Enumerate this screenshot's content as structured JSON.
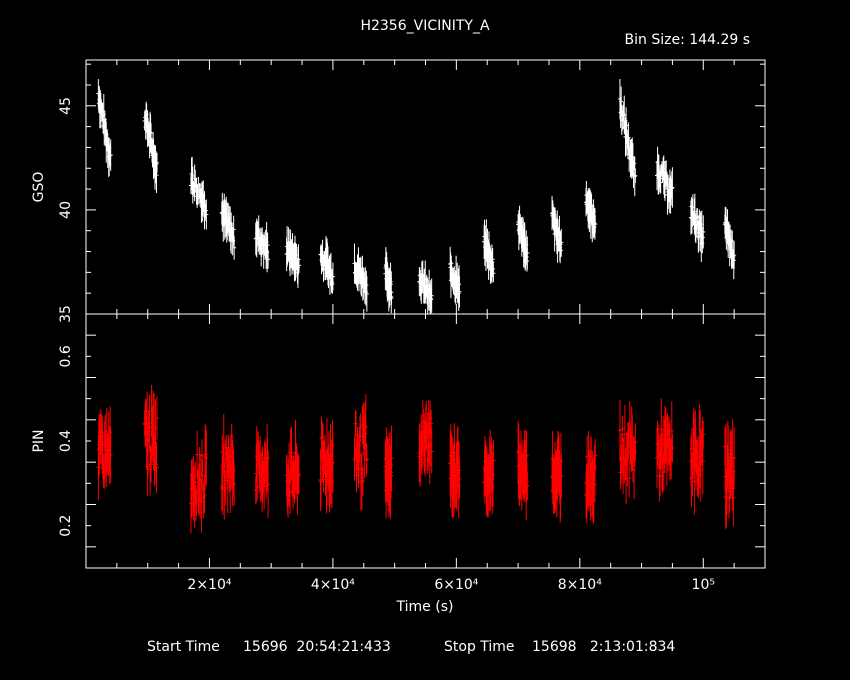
{
  "chart_data": [
    {
      "type": "scatter",
      "title": "H2356_VICINITY_A",
      "subtitle": "Bin Size: 144.29 s",
      "xlabel": "Time (s)",
      "ylabel": "GSO",
      "xlim": [
        0,
        110000
      ],
      "ylim": [
        35,
        47.2
      ],
      "y_ticks": [
        35,
        40,
        45
      ],
      "x_ticks": [
        "2×10⁴",
        "4×10⁴",
        "6×10⁴",
        "8×10⁴",
        "10⁵"
      ],
      "x_tick_values": [
        20000,
        40000,
        60000,
        80000,
        100000
      ],
      "color": "#ffffff",
      "series": [
        {
          "segments": [
            {
              "x": [
                2000,
                4000
              ],
              "y0": 45.6,
              "y1": 42.4
            },
            {
              "x": [
                9500,
                11500
              ],
              "y0": 44.6,
              "y1": 41.9
            },
            {
              "x": [
                17000,
                19500
              ],
              "y0": 41.6,
              "y1": 40.2
            },
            {
              "x": [
                22000,
                24000
              ],
              "y0": 39.9,
              "y1": 38.6
            },
            {
              "x": [
                27500,
                29500
              ],
              "y0": 38.9,
              "y1": 38.0
            },
            {
              "x": [
                32500,
                34500
              ],
              "y0": 38.2,
              "y1": 37.3
            },
            {
              "x": [
                38000,
                40000
              ],
              "y0": 37.9,
              "y1": 36.8
            },
            {
              "x": [
                43500,
                45500
              ],
              "y0": 37.4,
              "y1": 36.4
            },
            {
              "x": [
                48500,
                49500
              ],
              "y0": 37.0,
              "y1": 36.2
            },
            {
              "x": [
                54000,
                56000
              ],
              "y0": 36.8,
              "y1": 35.6
            },
            {
              "x": [
                59000,
                60500
              ],
              "y0": 37.1,
              "y1": 36.2
            },
            {
              "x": [
                64500,
                66000
              ],
              "y0": 38.4,
              "y1": 37.3
            },
            {
              "x": [
                70000,
                71500
              ],
              "y0": 39.4,
              "y1": 37.8
            },
            {
              "x": [
                75500,
                77000
              ],
              "y0": 39.6,
              "y1": 38.2
            },
            {
              "x": [
                81000,
                82500
              ],
              "y0": 40.6,
              "y1": 39.3
            },
            {
              "x": [
                86500,
                89000
              ],
              "y0": 45.2,
              "y1": 41.5
            },
            {
              "x": [
                92500,
                95000
              ],
              "y0": 42.1,
              "y1": 40.7
            },
            {
              "x": [
                98000,
                100000
              ],
              "y0": 40.0,
              "y1": 38.6
            },
            {
              "x": [
                103500,
                105000
              ],
              "y0": 39.2,
              "y1": 37.8
            }
          ]
        }
      ]
    },
    {
      "type": "scatter",
      "xlabel": "Time (s)",
      "ylabel": "PIN",
      "xlim": [
        0,
        110000
      ],
      "ylim": [
        0.1,
        0.7
      ],
      "y_ticks": [
        0.2,
        0.4,
        0.6
      ],
      "y_tick_labels": [
        "0.2",
        "0.4",
        "0.6"
      ],
      "color": "#ff0000",
      "series": [
        {
          "segments": [
            {
              "x": [
                2000,
                4000
              ],
              "center": 0.37,
              "spread": 0.09
            },
            {
              "x": [
                9500,
                11500
              ],
              "center": 0.4,
              "spread": 0.12
            },
            {
              "x": [
                17000,
                19500
              ],
              "center": 0.31,
              "spread": 0.1
            },
            {
              "x": [
                22000,
                24000
              ],
              "center": 0.34,
              "spread": 0.09
            },
            {
              "x": [
                27500,
                29500
              ],
              "center": 0.33,
              "spread": 0.08
            },
            {
              "x": [
                32500,
                34500
              ],
              "center": 0.32,
              "spread": 0.09
            },
            {
              "x": [
                38000,
                40000
              ],
              "center": 0.35,
              "spread": 0.1
            },
            {
              "x": [
                43500,
                45500
              ],
              "center": 0.37,
              "spread": 0.12
            },
            {
              "x": [
                48500,
                49500
              ],
              "center": 0.32,
              "spread": 0.08
            },
            {
              "x": [
                54000,
                56000
              ],
              "center": 0.4,
              "spread": 0.09
            },
            {
              "x": [
                59000,
                60500
              ],
              "center": 0.33,
              "spread": 0.08
            },
            {
              "x": [
                64500,
                66000
              ],
              "center": 0.32,
              "spread": 0.08
            },
            {
              "x": [
                70000,
                71500
              ],
              "center": 0.33,
              "spread": 0.08
            },
            {
              "x": [
                75500,
                77000
              ],
              "center": 0.32,
              "spread": 0.09
            },
            {
              "x": [
                81000,
                82500
              ],
              "center": 0.32,
              "spread": 0.08
            },
            {
              "x": [
                86500,
                89000
              ],
              "center": 0.37,
              "spread": 0.1
            },
            {
              "x": [
                92500,
                95000
              ],
              "center": 0.37,
              "spread": 0.1
            },
            {
              "x": [
                98000,
                100000
              ],
              "center": 0.36,
              "spread": 0.1
            },
            {
              "x": [
                103500,
                105000
              ],
              "center": 0.33,
              "spread": 0.11
            }
          ]
        }
      ]
    }
  ],
  "footer": {
    "start_label": "Start Time",
    "start_value": "15696  20:54:21:433",
    "stop_label": "Stop Time",
    "stop_value": "15698   2:13:01:834"
  }
}
